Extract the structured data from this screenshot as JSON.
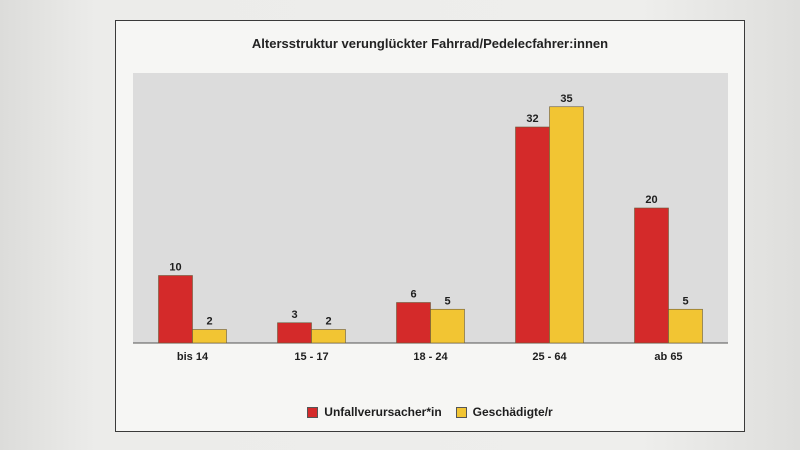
{
  "chart_data": {
    "type": "bar",
    "title": "Altersstruktur verunglückter Fahrrad/Pedelecfahrer:innen",
    "categories": [
      "bis 14",
      "15 - 17",
      "18 - 24",
      "25 - 64",
      "ab 65"
    ],
    "series": [
      {
        "name": "Unfallverursacher*in",
        "values": [
          10,
          3,
          6,
          32,
          20
        ],
        "color": "#d42a2a"
      },
      {
        "name": "Geschädigte/r",
        "values": [
          2,
          2,
          5,
          35,
          5
        ],
        "color": "#f2c533"
      }
    ],
    "ylim": [
      0,
      40
    ],
    "grid": false,
    "data_labels": true,
    "legend_position": "bottom",
    "plot_background": "#dcdcdc"
  }
}
